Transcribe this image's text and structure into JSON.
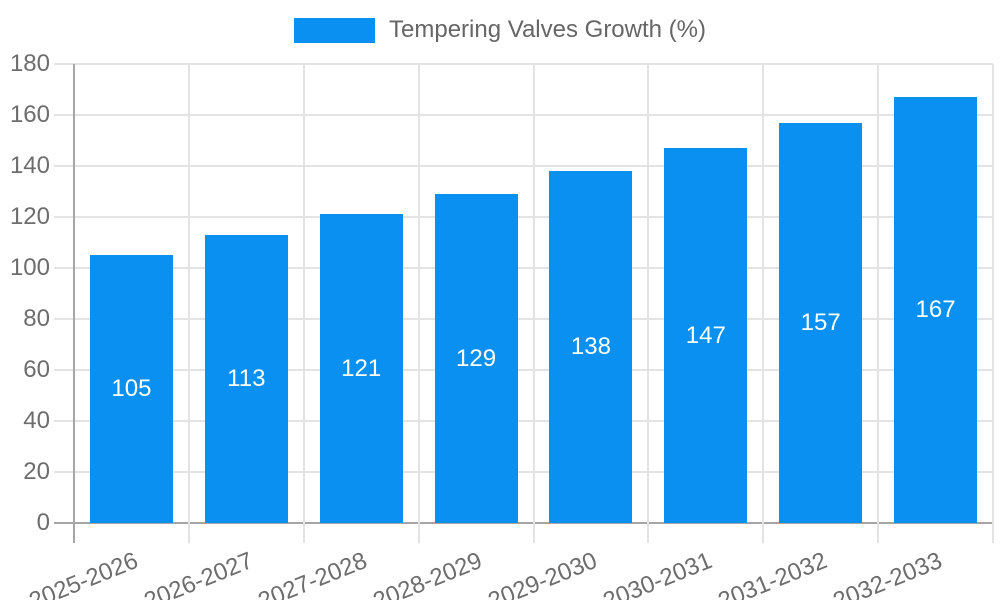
{
  "legend": {
    "label": "Tempering Valves Growth (%)"
  },
  "chart_data": {
    "type": "bar",
    "title": "",
    "categories": [
      "2025-2026",
      "2026-2027",
      "2027-2028",
      "2028-2029",
      "2029-2030",
      "2030-2031",
      "2031-2032",
      "2032-2033"
    ],
    "series": [
      {
        "name": "Tempering Valves Growth (%)",
        "values": [
          105,
          113,
          121,
          129,
          138,
          147,
          157,
          167
        ]
      }
    ],
    "value_labels": [
      "105",
      "113",
      "121",
      "129",
      "138",
      "147",
      "157",
      "167"
    ],
    "ytick_labels": [
      "0",
      "20",
      "40",
      "60",
      "80",
      "100",
      "120",
      "140",
      "160",
      "180"
    ],
    "ylim": [
      0,
      180
    ],
    "ytick_step": 20,
    "xlabel": "",
    "ylabel": "",
    "grid": "on",
    "legend_position": "top",
    "colors": {
      "bar": "#0a90f1",
      "value_label": "#ffffff",
      "grid_line": "#e3e3e3",
      "axis_line": "#a6a6a6",
      "tick_text": "#6d6d6d",
      "legend_text": "#666666"
    }
  }
}
